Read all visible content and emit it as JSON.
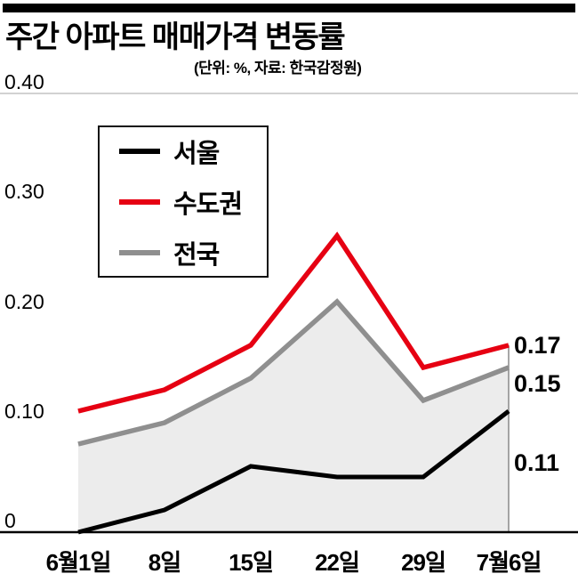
{
  "chart_data": {
    "type": "line",
    "title": "주간 아파트 매매가격 변동률",
    "subtitle": "(단위: %, 자료: 한국감정원)",
    "unit": "%",
    "source": "한국감정원",
    "categories": [
      "6월1일",
      "8일",
      "15일",
      "22일",
      "29일",
      "7월6일"
    ],
    "series": [
      {
        "id": "seoul",
        "name": "서울",
        "color": "#000000",
        "values": [
          0.0,
          0.02,
          0.06,
          0.05,
          0.05,
          0.11
        ]
      },
      {
        "id": "sudogwon",
        "name": "수도권",
        "color": "#e60012",
        "values": [
          0.11,
          0.13,
          0.17,
          0.27,
          0.15,
          0.17
        ]
      },
      {
        "id": "jeonguk",
        "name": "전국",
        "color": "#8f8f8f",
        "values": [
          0.08,
          0.1,
          0.14,
          0.21,
          0.12,
          0.15
        ],
        "area_fill": "#ececec"
      }
    ],
    "end_labels": [
      "0.17",
      "0.15",
      "0.11"
    ],
    "y_ticks": [
      {
        "label": "0.40",
        "value": 0.4
      },
      {
        "label": "0.30",
        "value": 0.3
      },
      {
        "label": "0.20",
        "value": 0.2
      },
      {
        "label": "0.10",
        "value": 0.1
      },
      {
        "label": "0",
        "value": 0
      }
    ],
    "ylim": [
      0,
      0.4
    ],
    "grid": false,
    "legend_position": "upper-left"
  }
}
